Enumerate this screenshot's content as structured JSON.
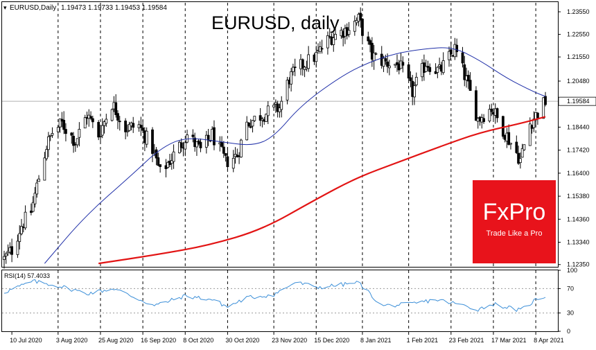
{
  "header": {
    "symbol_label": "EURUSD,Daily",
    "ohlc_text": "1.19473 1.19733 1.19453 1.19584"
  },
  "chart_title": "EURUSD, daily",
  "price_axis": {
    "ticks": [
      "1.23550",
      "1.22550",
      "1.21550",
      "1.20480",
      "1.19584",
      "1.18440",
      "1.17420",
      "1.16400",
      "1.15380",
      "1.14360",
      "1.13340",
      "1.12350"
    ],
    "current_price_label": "1.19584"
  },
  "date_axis": {
    "labels": [
      "10 Jul 2020",
      "3 Aug 2020",
      "25 Aug 2020",
      "16 Sep 2020",
      "8 Oct 2020",
      "30 Oct 2020",
      "23 Nov 2020",
      "15 Dec 2020",
      "8 Jan 2021",
      "1 Feb 2021",
      "23 Feb 2021",
      "17 Mar 2021",
      "8 Apr 2021"
    ]
  },
  "rsi_panel": {
    "label": "RSI(14) 57.4033",
    "ticks": [
      "100",
      "70",
      "30",
      "0"
    ]
  },
  "brand": {
    "name": "FxPro",
    "tagline": "Trade Like a Pro",
    "color": "#e8131b"
  },
  "colors": {
    "bull": "#ffffff",
    "bear": "#000000",
    "ma_fast": "#1f2fa8",
    "ma_slow": "#e21414",
    "rsi": "#3c8fd8",
    "grid": "#000000"
  },
  "chart_data": {
    "type": "candlestick",
    "title": "EURUSD, daily",
    "ylim": [
      1.1225,
      1.2395
    ],
    "x_range": [
      "2020-07-06",
      "2021-04-13"
    ],
    "indicators": [
      "moving average (fast, blue)",
      "moving average (slow, red)",
      "RSI(14)"
    ],
    "closes": [
      [
        "2020-07-06",
        1.126
      ],
      [
        "2020-07-10",
        1.13
      ],
      [
        "2020-07-15",
        1.141
      ],
      [
        "2020-07-20",
        1.147
      ],
      [
        "2020-07-24",
        1.162
      ],
      [
        "2020-07-28",
        1.176
      ],
      [
        "2020-07-31",
        1.182
      ],
      [
        "2020-08-05",
        1.186
      ],
      [
        "2020-08-12",
        1.178
      ],
      [
        "2020-08-18",
        1.19
      ],
      [
        "2020-08-24",
        1.181
      ],
      [
        "2020-08-31",
        1.195
      ],
      [
        "2020-09-07",
        1.184
      ],
      [
        "2020-09-14",
        1.185
      ],
      [
        "2020-09-21",
        1.175
      ],
      [
        "2020-09-25",
        1.164
      ],
      [
        "2020-10-02",
        1.172
      ],
      [
        "2020-10-09",
        1.181
      ],
      [
        "2020-10-16",
        1.174
      ],
      [
        "2020-10-22",
        1.181
      ],
      [
        "2020-10-29",
        1.169
      ],
      [
        "2020-11-04",
        1.172
      ],
      [
        "2020-11-09",
        1.186
      ],
      [
        "2020-11-17",
        1.19
      ],
      [
        "2020-11-26",
        1.193
      ],
      [
        "2020-12-01",
        1.206
      ],
      [
        "2020-12-08",
        1.212
      ],
      [
        "2020-12-15",
        1.216
      ],
      [
        "2020-12-22",
        1.224
      ],
      [
        "2020-12-31",
        1.228
      ],
      [
        "2021-01-06",
        1.232
      ],
      [
        "2021-01-13",
        1.216
      ],
      [
        "2021-01-20",
        1.213
      ],
      [
        "2021-01-27",
        1.212
      ],
      [
        "2021-02-03",
        1.2
      ],
      [
        "2021-02-10",
        1.213
      ],
      [
        "2021-02-17",
        1.209
      ],
      [
        "2021-02-25",
        1.219
      ],
      [
        "2021-03-03",
        1.205
      ],
      [
        "2021-03-09",
        1.188
      ],
      [
        "2021-03-16",
        1.193
      ],
      [
        "2021-03-23",
        1.182
      ],
      [
        "2021-03-31",
        1.17
      ],
      [
        "2021-04-05",
        1.186
      ],
      [
        "2021-04-13",
        1.1958
      ]
    ],
    "ma_fast": [
      [
        "2020-07-27",
        1.124
      ],
      [
        "2020-08-17",
        1.145
      ],
      [
        "2020-09-10",
        1.163
      ],
      [
        "2020-09-25",
        1.175
      ],
      [
        "2020-10-08",
        1.18
      ],
      [
        "2020-10-26",
        1.178
      ],
      [
        "2020-11-12",
        1.176
      ],
      [
        "2020-11-23",
        1.18
      ],
      [
        "2020-12-07",
        1.194
      ],
      [
        "2020-12-28",
        1.207
      ],
      [
        "2021-01-11",
        1.213
      ],
      [
        "2021-01-25",
        1.217
      ],
      [
        "2021-02-08",
        1.219
      ],
      [
        "2021-02-24",
        1.22
      ],
      [
        "2021-03-10",
        1.214
      ],
      [
        "2021-03-24",
        1.206
      ],
      [
        "2021-04-07",
        1.2
      ],
      [
        "2021-04-13",
        1.198
      ]
    ],
    "ma_slow": [
      [
        "2020-08-24",
        1.124
      ],
      [
        "2020-09-24",
        1.128
      ],
      [
        "2020-10-20",
        1.132
      ],
      [
        "2020-11-17",
        1.139
      ],
      [
        "2020-12-14",
        1.152
      ],
      [
        "2021-01-05",
        1.162
      ],
      [
        "2021-01-27",
        1.169
      ],
      [
        "2021-02-18",
        1.176
      ],
      [
        "2021-03-10",
        1.182
      ],
      [
        "2021-03-31",
        1.186
      ],
      [
        "2021-04-13",
        1.189
      ]
    ],
    "rsi": [
      [
        "2020-07-06",
        64
      ],
      [
        "2020-07-21",
        82
      ],
      [
        "2020-08-04",
        74
      ],
      [
        "2020-08-18",
        62
      ],
      [
        "2020-09-01",
        70
      ],
      [
        "2020-09-22",
        42
      ],
      [
        "2020-10-08",
        58
      ],
      [
        "2020-10-22",
        52
      ],
      [
        "2020-10-30",
        40
      ],
      [
        "2020-11-09",
        55
      ],
      [
        "2020-11-23",
        60
      ],
      [
        "2020-12-04",
        80
      ],
      [
        "2020-12-17",
        72
      ],
      [
        "2021-01-06",
        80
      ],
      [
        "2021-01-18",
        42
      ],
      [
        "2021-02-01",
        44
      ],
      [
        "2021-02-15",
        52
      ],
      [
        "2021-02-26",
        45
      ],
      [
        "2021-03-09",
        36
      ],
      [
        "2021-03-17",
        45
      ],
      [
        "2021-03-31",
        34
      ],
      [
        "2021-04-08",
        52
      ],
      [
        "2021-04-13",
        57.4
      ]
    ]
  }
}
